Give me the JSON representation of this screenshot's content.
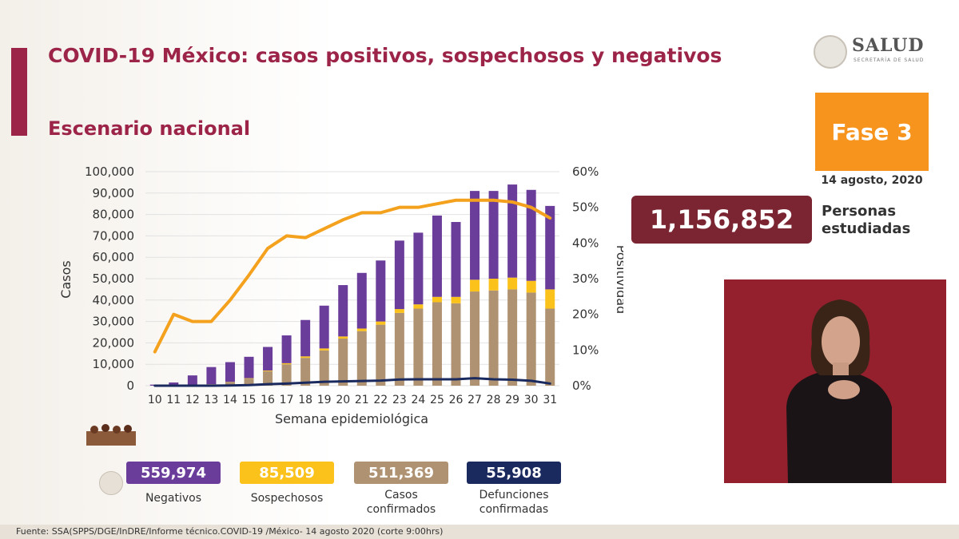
{
  "title": "COVID-19 México: casos positivos, sospechosos y negativos",
  "subtitle": "Escenario nacional",
  "logo": {
    "text": "SALUD",
    "subtext": "SECRETARÍA DE SALUD"
  },
  "fase": {
    "label": "Fase 3",
    "date": "14 agosto, 2020"
  },
  "personas": {
    "value": "1,156,852",
    "label_line1": "Personas",
    "label_line2": "estudiadas"
  },
  "legend": [
    {
      "value": "559,974",
      "label": "Negativos",
      "color": "#6a3d9a"
    },
    {
      "value": "85,509",
      "label": "Sospechosos",
      "color": "#fbc21b"
    },
    {
      "value": "511,369",
      "label_line1": "Casos",
      "label_line2": "confirmados",
      "color": "#ae9271"
    },
    {
      "value": "55,908",
      "label_line1": "Defunciones",
      "label_line2": "confirmadas",
      "color": "#1a2a5e"
    }
  ],
  "source": "Fuente: SSA(SPPS/DGE/InDRE/Informe técnico.COVID-19 /México- 14 agosto 2020 (corte 9:00hrs)",
  "chart_data": {
    "type": "bar",
    "stacked": true,
    "xlabel": "Semana epidemiológica",
    "ylabel": "Casos",
    "y2label": "Positividad",
    "ylim": [
      0,
      100000
    ],
    "y2lim": [
      0,
      60
    ],
    "yticks": [
      "0",
      "10,000",
      "20,000",
      "30,000",
      "40,000",
      "50,000",
      "60,000",
      "70,000",
      "80,000",
      "90,000",
      "100,000"
    ],
    "y2ticks": [
      "0%",
      "10%",
      "20%",
      "30%",
      "40%",
      "50%",
      "60%"
    ],
    "categories": [
      "10",
      "11",
      "12",
      "13",
      "14",
      "15",
      "16",
      "17",
      "18",
      "19",
      "20",
      "21",
      "22",
      "23",
      "24",
      "25",
      "26",
      "27",
      "28",
      "29",
      "30",
      "31"
    ],
    "series": [
      {
        "name": "Casos confirmados",
        "color": "#ae9271",
        "values": [
          0,
          0,
          300,
          700,
          1700,
          3300,
          6800,
          10000,
          13000,
          16500,
          22000,
          25500,
          28500,
          34000,
          36000,
          39000,
          38500,
          44000,
          44500,
          45000,
          43500,
          36000
        ]
      },
      {
        "name": "Sospechosos",
        "color": "#fbc21b",
        "values": [
          0,
          0,
          0,
          0,
          100,
          200,
          300,
          500,
          700,
          900,
          1000,
          1200,
          1500,
          1800,
          2000,
          2500,
          3000,
          5500,
          5500,
          5500,
          5500,
          9000
        ]
      },
      {
        "name": "Negativos",
        "color": "#6a3d9a",
        "values": [
          500,
          1500,
          4500,
          8000,
          9200,
          10000,
          11000,
          13000,
          17000,
          20000,
          24000,
          26000,
          28500,
          32000,
          33500,
          38000,
          35000,
          41500,
          41000,
          43500,
          42500,
          39000
        ]
      }
    ],
    "lines": [
      {
        "name": "Positividad",
        "color": "#f4a11d",
        "axis": "y2",
        "values": [
          9.5,
          20,
          18,
          18,
          24,
          31,
          38.5,
          42,
          41.5,
          44,
          46.5,
          48.5,
          48.5,
          50,
          50,
          51,
          52,
          52,
          52,
          51.5,
          50,
          47
        ]
      },
      {
        "name": "Defunciones",
        "color": "#1a2a5e",
        "axis": "y",
        "values": [
          0,
          0,
          0,
          0,
          100,
          300,
          700,
          1000,
          1400,
          1800,
          2000,
          2200,
          2400,
          2900,
          3000,
          3000,
          3000,
          3500,
          3000,
          2800,
          2300,
          1000
        ]
      }
    ]
  }
}
